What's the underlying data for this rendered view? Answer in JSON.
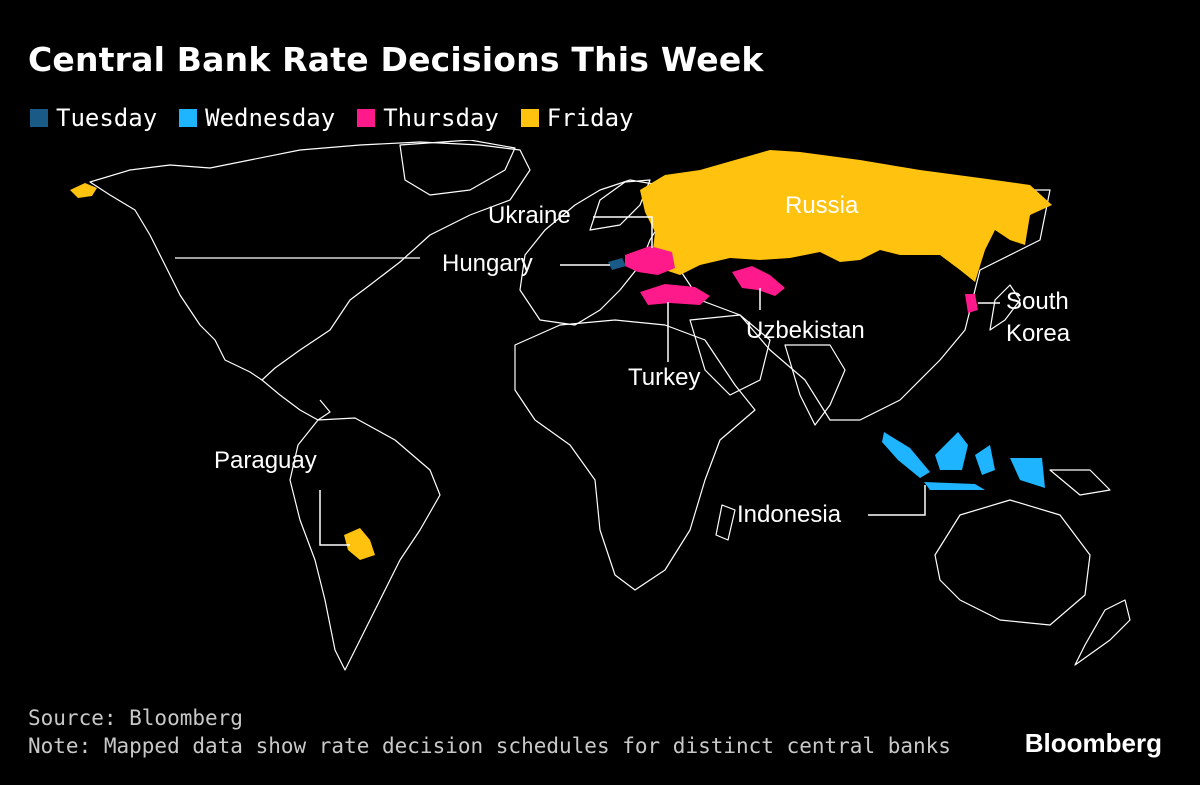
{
  "title": "Central Bank Rate Decisions This Week",
  "legend": [
    {
      "label": "Tuesday",
      "color": "#1a5a86"
    },
    {
      "label": "Wednesday",
      "color": "#1eb4ff"
    },
    {
      "label": "Thursday",
      "color": "#ff1a8c"
    },
    {
      "label": "Friday",
      "color": "#ffc20e"
    }
  ],
  "countries": [
    {
      "name": "Hungary",
      "day": "Tuesday",
      "label": "Hungary"
    },
    {
      "name": "Indonesia",
      "day": "Wednesday",
      "label": "Indonesia"
    },
    {
      "name": "Ukraine",
      "day": "Thursday",
      "label": "Ukraine"
    },
    {
      "name": "Turkey",
      "day": "Thursday",
      "label": "Turkey"
    },
    {
      "name": "Uzbekistan",
      "day": "Thursday",
      "label": "Uzbekistan"
    },
    {
      "name": "South Korea",
      "day": "Thursday",
      "label_line1": "South",
      "label_line2": "Korea"
    },
    {
      "name": "Russia",
      "day": "Friday",
      "label": "Russia"
    },
    {
      "name": "Paraguay",
      "day": "Friday",
      "label": "Paraguay"
    }
  ],
  "source": "Source: Bloomberg",
  "note": "Note: Mapped data show rate decision schedules for distinct central banks",
  "brand": "Bloomberg"
}
